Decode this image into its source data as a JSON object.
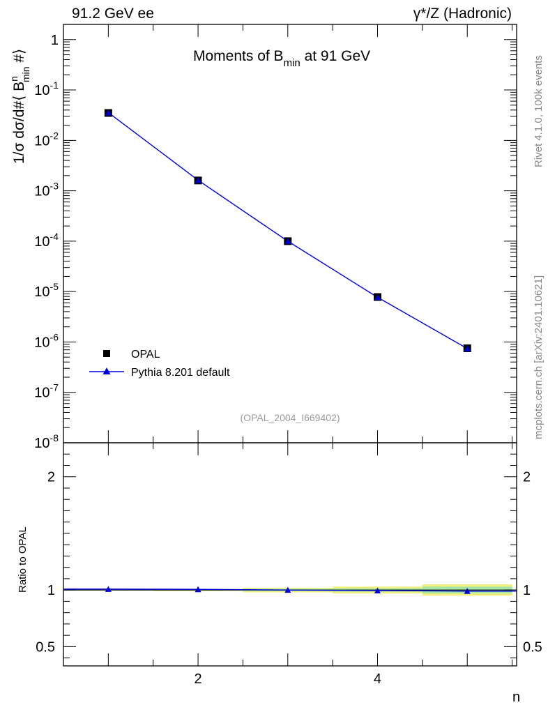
{
  "header": {
    "left_label": "91.2 GeV ee",
    "right_label": "γ*/Z (Hadronic)"
  },
  "side_labels": {
    "rivet": "Rivet 4.1.0,  100k events",
    "mcplots": "mcplots.cern.ch [arXiv:2401.10621]"
  },
  "colors": {
    "data": "#000000",
    "mc": "#0000dd",
    "band_yellow": "#f0f07a",
    "band_green": "#a6e6a6"
  },
  "chart_data": [
    {
      "type": "scatter",
      "title": "Moments of B_min at 91 GeV",
      "title_main": "Moments of B",
      "title_sub": "min",
      "title_tail": " at 91 GeV",
      "ylabel": "1/σ  dσ/d#⟨ B^n_min #⟩",
      "ylabel_parts": {
        "prefix": "1/σ  dσ/d#⟨ B",
        "sup": "n",
        "sub": "min",
        "suffix": " #⟩"
      },
      "yscale": "log",
      "ylim": [
        1e-08,
        2
      ],
      "xlim": [
        0.5,
        5.55
      ],
      "y_tick_labels": [
        {
          "exp": -8,
          "base": "10",
          "sup": "-8"
        },
        {
          "exp": -7,
          "base": "10",
          "sup": "-7"
        },
        {
          "exp": -6,
          "base": "10",
          "sup": "-6"
        },
        {
          "exp": -5,
          "base": "10",
          "sup": "-5"
        },
        {
          "exp": -4,
          "base": "10",
          "sup": "-4"
        },
        {
          "exp": -3,
          "base": "10",
          "sup": "-3"
        },
        {
          "exp": -2,
          "base": "10",
          "sup": "-2"
        },
        {
          "exp": -1,
          "base": "10",
          "sup": "-1"
        },
        {
          "exp": 0,
          "base": "1",
          "sup": ""
        }
      ],
      "watermark": "(OPAL_2004_I669402)",
      "legend_position": "lower-left",
      "series": [
        {
          "name": "OPAL",
          "marker": "square",
          "x": [
            1,
            2,
            3,
            4,
            5
          ],
          "y": [
            0.035,
            0.0016,
            0.0001,
            7.8e-06,
            7.5e-07
          ]
        },
        {
          "name": "Pythia 8.201 default",
          "marker": "triangle",
          "x": [
            1,
            2,
            3,
            4,
            5
          ],
          "y": [
            0.0356,
            0.00162,
            0.0001,
            7.7e-06,
            7.4e-07
          ]
        }
      ]
    },
    {
      "type": "scatter",
      "ylabel": "Ratio to OPAL",
      "xlabel": "n",
      "ylim": [
        0.33,
        2.3
      ],
      "y_ticks": [
        0.5,
        1,
        2
      ],
      "y_tick_labels": [
        "0.5",
        "1",
        "2"
      ],
      "x_ticks": [
        2,
        4
      ],
      "x_tick_labels": [
        "2",
        "4"
      ],
      "bands": [
        {
          "x_range": [
            0.5,
            1.5
          ],
          "yellow": [
            0.995,
            1.005
          ],
          "green": [
            0.997,
            1.003
          ]
        },
        {
          "x_range": [
            1.5,
            2.5
          ],
          "yellow": [
            0.99,
            1.01
          ],
          "green": [
            0.995,
            1.005
          ]
        },
        {
          "x_range": [
            2.5,
            3.5
          ],
          "yellow": [
            0.98,
            1.02
          ],
          "green": [
            0.99,
            1.01
          ]
        },
        {
          "x_range": [
            3.5,
            4.5
          ],
          "yellow": [
            0.97,
            1.03
          ],
          "green": [
            0.985,
            1.015
          ]
        },
        {
          "x_range": [
            4.5,
            5.5
          ],
          "yellow": [
            0.95,
            1.05
          ],
          "green": [
            0.97,
            1.03
          ]
        }
      ],
      "series": [
        {
          "name": "Pythia 8.201 default",
          "x": [
            1,
            2,
            3,
            4,
            5
          ],
          "y": [
            1.008,
            1.006,
            1.0,
            0.995,
            0.99
          ]
        }
      ]
    }
  ]
}
